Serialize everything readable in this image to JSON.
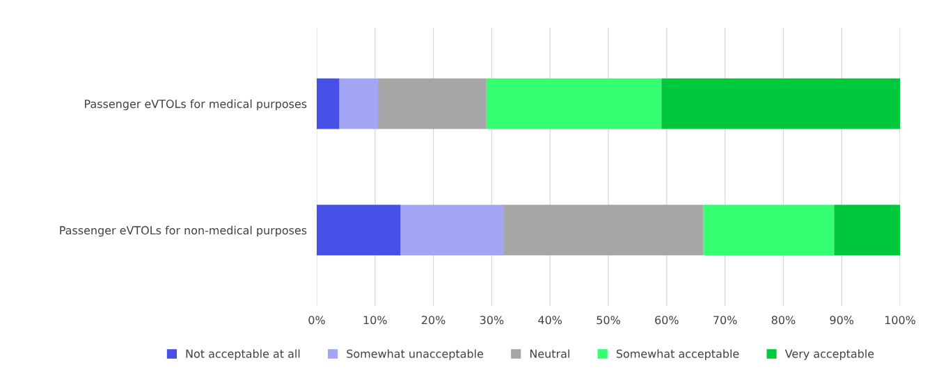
{
  "chart_data": {
    "type": "bar",
    "orientation": "horizontal",
    "stacked": true,
    "categories": [
      "Passenger eVTOLs for medical purposes",
      "Passenger eVTOLs for non-medical purposes"
    ],
    "series": [
      {
        "name": "Not acceptable at all",
        "color": "#4650e6",
        "values": [
          3.9,
          14.4
        ]
      },
      {
        "name": "Somewhat unacceptable",
        "color": "#a3a6f2",
        "values": [
          6.6,
          17.7
        ]
      },
      {
        "name": "Neutral",
        "color": "#a6a6a6",
        "values": [
          18.6,
          34.2
        ]
      },
      {
        "name": "Somewhat acceptable",
        "color": "#33ff70",
        "values": [
          30.0,
          22.4
        ]
      },
      {
        "name": "Very acceptable",
        "color": "#00c83c",
        "values": [
          40.9,
          11.3
        ]
      }
    ],
    "xlim": [
      0,
      100
    ],
    "xticks": [
      {
        "value": 0,
        "label": "0%"
      },
      {
        "value": 10,
        "label": "10%"
      },
      {
        "value": 20,
        "label": "20%"
      },
      {
        "value": 30,
        "label": "30%"
      },
      {
        "value": 40,
        "label": "40%"
      },
      {
        "value": 50,
        "label": "50%"
      },
      {
        "value": 60,
        "label": "60%"
      },
      {
        "value": 70,
        "label": "70%"
      },
      {
        "value": 80,
        "label": "80%"
      },
      {
        "value": 90,
        "label": "90%"
      },
      {
        "value": 100,
        "label": "100%"
      }
    ],
    "grid": "x",
    "legend": "bottom"
  }
}
